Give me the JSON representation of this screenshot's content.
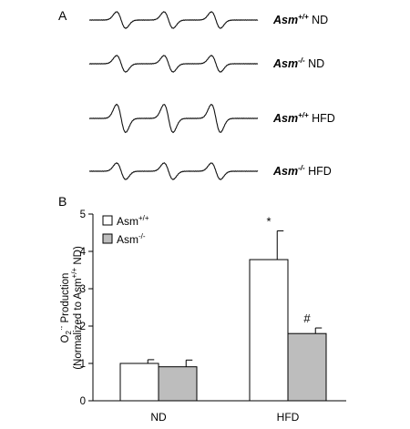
{
  "panel_a": {
    "label": "A",
    "traces": [
      {
        "genotype": "Asm",
        "superscript": "+/+",
        "diet": "ND",
        "amplitude": 1.0
      },
      {
        "genotype": "Asm",
        "superscript": "-/-",
        "diet": "ND",
        "amplitude": 1.0
      },
      {
        "genotype": "Asm",
        "superscript": "+/+",
        "diet": "HFD",
        "amplitude": 1.7
      },
      {
        "genotype": "Asm",
        "superscript": "-/-",
        "diet": "HFD",
        "amplitude": 1.0
      }
    ]
  },
  "panel_b": {
    "label": "B",
    "ylabel_line1": "O",
    "ylabel_sub": "2",
    "ylabel_sup": "·-",
    "ylabel_line1_rest": " Production",
    "ylabel_line2": "(Normalized to Asm",
    "ylabel_line2_sup": "+/+",
    "ylabel_line2_rest": " ND)"
  },
  "chart_data": {
    "type": "bar",
    "categories": [
      "ND",
      "HFD"
    ],
    "ylim": [
      0,
      5
    ],
    "yticks": [
      "0",
      "1",
      "2",
      "3",
      "4",
      "5"
    ],
    "series": [
      {
        "name": "Asm+/+",
        "legend_base": "Asm",
        "legend_sup": "+/+",
        "color": "#ffffff",
        "values": [
          1.0,
          3.78
        ],
        "errors": [
          0.1,
          0.77
        ],
        "annotations": [
          "",
          "*"
        ]
      },
      {
        "name": "Asm-/-",
        "legend_base": "Asm",
        "legend_sup": "-/-",
        "color": "#bdbdbd",
        "values": [
          0.91,
          1.8
        ],
        "errors": [
          0.18,
          0.15
        ],
        "annotations": [
          "",
          "#"
        ]
      }
    ],
    "legend_position": "top-left"
  }
}
